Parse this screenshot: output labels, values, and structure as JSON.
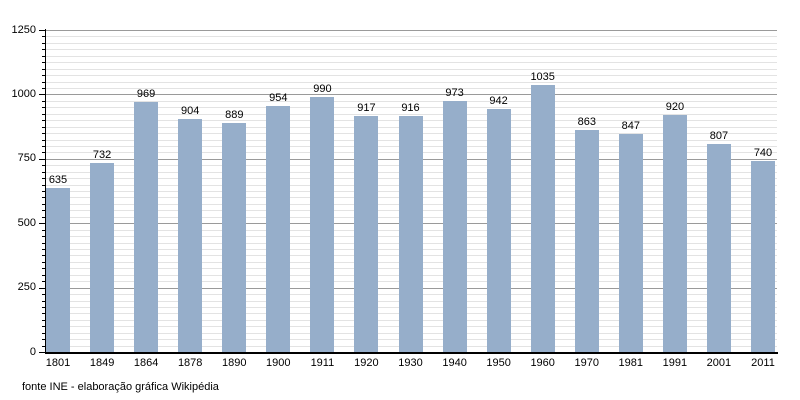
{
  "chart_data": {
    "type": "bar",
    "categories": [
      "1801",
      "1849",
      "1864",
      "1878",
      "1890",
      "1900",
      "1911",
      "1920",
      "1930",
      "1940",
      "1950",
      "1960",
      "1970",
      "1981",
      "1991",
      "2001",
      "2011"
    ],
    "values": [
      635,
      732,
      969,
      904,
      889,
      954,
      990,
      917,
      916,
      973,
      942,
      1035,
      863,
      847,
      920,
      807,
      740
    ],
    "ylim": [
      0,
      1250
    ],
    "yticks": [
      0,
      250,
      500,
      750,
      1000,
      1250
    ],
    "minor_grid_step": 25,
    "major_grid_step": 250,
    "grid": true,
    "legend": "none",
    "data_labels": true,
    "bar_color": "#96AECA",
    "major_grid_color": "#9a9a9a",
    "minor_grid_color": "#e3e3e3",
    "axis_color": "#000000",
    "source": "fonte INE - elaboração gráfica Wikipédia"
  }
}
